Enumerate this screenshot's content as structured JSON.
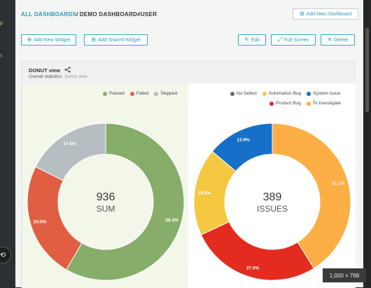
{
  "left_strip": {
    "items": [
      "p",
      "s"
    ]
  },
  "breadcrumb": {
    "link": "ALL DASHBOARDS",
    "separator": "/",
    "current": "DEMO DASHBOARD#USER"
  },
  "toolbar": {
    "add_new_dashboard": "Add New Dashboard",
    "add_new_widget": "Add New Widget",
    "add_shared_widget": "Add Shared Widget",
    "edit": "Edit",
    "full_screen": "Full Screen",
    "delete": "Delete"
  },
  "widget": {
    "title": "DONUT view",
    "subtitle": "Overall statistics",
    "subtitle_muted": "Donut view"
  },
  "image_size": "1,000 × 768",
  "chart_data": [
    {
      "type": "pie",
      "center_value": "936",
      "center_label": "SUM",
      "legend": [
        {
          "name": "Passed",
          "color": "#87ad6b"
        },
        {
          "name": "Failed",
          "color": "#e05f43"
        },
        {
          "name": "Skipped",
          "color": "#b7bec2"
        }
      ],
      "slices": [
        {
          "name": "Passed",
          "value": 58.3,
          "label": "58.3%",
          "color": "#87ad6b"
        },
        {
          "name": "Failed",
          "value": 24.0,
          "label": "24.0%",
          "color": "#e05f43"
        },
        {
          "name": "Skipped",
          "value": 17.6,
          "label": "17.6%",
          "color": "#b7bec2"
        }
      ]
    },
    {
      "type": "pie",
      "center_value": "389",
      "center_label": "ISSUES",
      "legend": [
        {
          "name": "No Defect",
          "color": "#666b70"
        },
        {
          "name": "Automation Bug",
          "color": "#f5c842"
        },
        {
          "name": "System Issue",
          "color": "#1670c7"
        },
        {
          "name": "Product Bug",
          "color": "#e32b1f"
        },
        {
          "name": "To Investigate",
          "color": "#fdae45"
        }
      ],
      "slices": [
        {
          "name": "To Investigate",
          "value": 41.1,
          "label": "41.1%",
          "color": "#fdae45"
        },
        {
          "name": "Product Bug",
          "value": 27.0,
          "label": "27.0%",
          "color": "#e32b1f"
        },
        {
          "name": "Automation Bug",
          "value": 18.0,
          "label": "18.0%",
          "color": "#f5c842"
        },
        {
          "name": "System Issue",
          "value": 13.9,
          "label": "13.9%",
          "color": "#1670c7"
        }
      ]
    }
  ]
}
